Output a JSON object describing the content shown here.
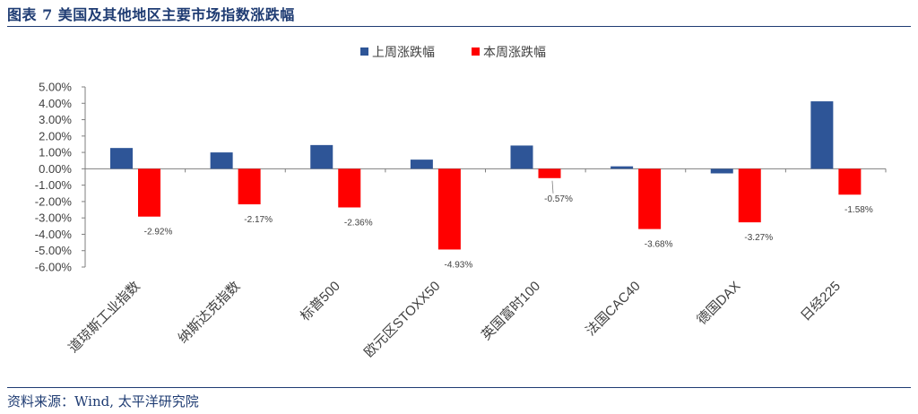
{
  "header": {
    "title": "图表 7 美国及其他地区主要市场指数涨跌幅"
  },
  "footer": {
    "source": "资料来源：Wind, 太平洋研究院"
  },
  "colors": {
    "last_week": "#2e5597",
    "this_week": "#ff0000",
    "title": "#1f3c73",
    "axis": "#7f7f7f",
    "text": "#404040"
  },
  "chart_data": {
    "type": "bar",
    "title": "",
    "xlabel": "",
    "ylabel": "",
    "ylim": [
      -6,
      5
    ],
    "ytick_step": 1,
    "ytick_labels": [
      "5.00%",
      "4.00%",
      "3.00%",
      "2.00%",
      "1.00%",
      "0.00%",
      "-1.00%",
      "-2.00%",
      "-3.00%",
      "-4.00%",
      "-5.00%",
      "-6.00%"
    ],
    "legend_position": "top-center",
    "categories": [
      "道琼斯工业指数",
      "纳斯达克指数",
      "标普500",
      "欧元区STOXX50",
      "英国富时100",
      "法国CAC40",
      "德国DAX",
      "日经225"
    ],
    "series": [
      {
        "name": "上周涨跌幅",
        "values": [
          1.27,
          1.0,
          1.45,
          0.56,
          1.42,
          0.15,
          -0.28,
          4.12
        ],
        "labels": [
          "",
          "",
          "",
          "",
          "",
          "",
          "",
          ""
        ]
      },
      {
        "name": "本周涨跌幅",
        "values": [
          -2.92,
          -2.17,
          -2.36,
          -4.93,
          -0.57,
          -3.68,
          -3.27,
          -1.58
        ],
        "labels": [
          "-2.92%",
          "-2.17%",
          "-2.36%",
          "-4.93%",
          "-0.57%",
          "-3.68%",
          "-3.27%",
          "-1.58%"
        ]
      }
    ]
  }
}
